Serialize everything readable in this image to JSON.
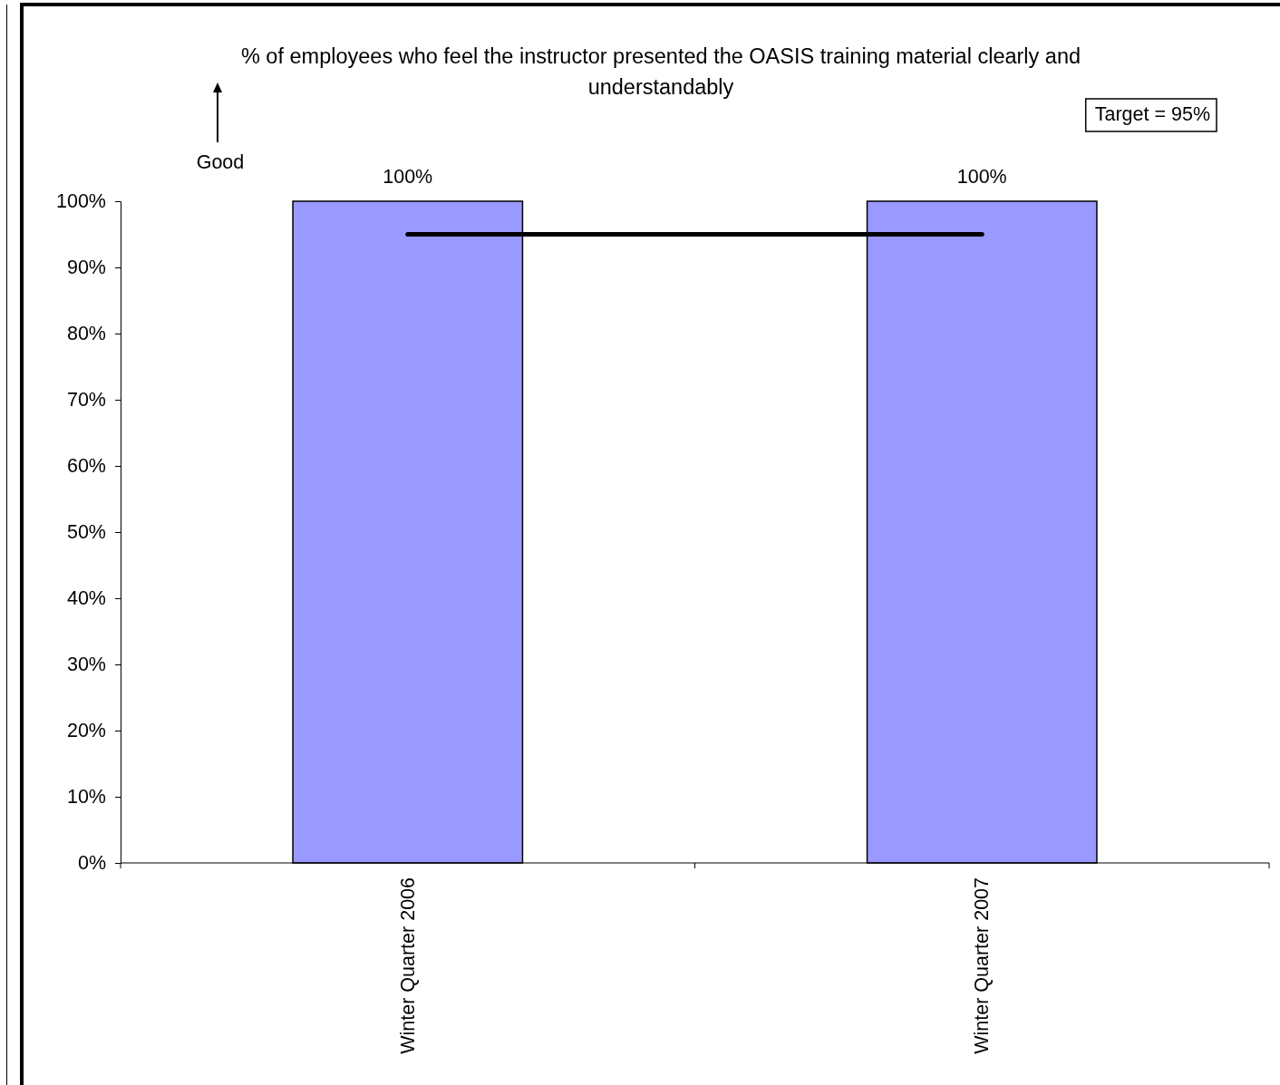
{
  "chart_data": {
    "type": "bar",
    "title": "% of employees who feel the instructor presented the OASIS training material clearly and understandably",
    "categories": [
      "Winter Quarter 2006",
      "Winter Quarter 2007"
    ],
    "series": [
      {
        "color": "#9999ff",
        "values": [
          100,
          100
        ],
        "value_labels": [
          "100%",
          "100%"
        ]
      },
      {
        "type": "line",
        "color": "#000000",
        "values": [
          95,
          95
        ]
      }
    ],
    "ylim": [
      0,
      100
    ],
    "yticks": [
      {
        "value": 0,
        "label": "0%"
      },
      {
        "value": 10,
        "label": "10%"
      },
      {
        "value": 20,
        "label": "20%"
      },
      {
        "value": 30,
        "label": "30%"
      },
      {
        "value": 40,
        "label": "40%"
      },
      {
        "value": 50,
        "label": "50%"
      },
      {
        "value": 60,
        "label": "60%"
      },
      {
        "value": 70,
        "label": "70%"
      },
      {
        "value": 80,
        "label": "80%"
      },
      {
        "value": 90,
        "label": "90%"
      },
      {
        "value": 100,
        "label": "100%"
      }
    ],
    "annotations": [
      "Target = 95%",
      "Good"
    ],
    "grid": false
  }
}
